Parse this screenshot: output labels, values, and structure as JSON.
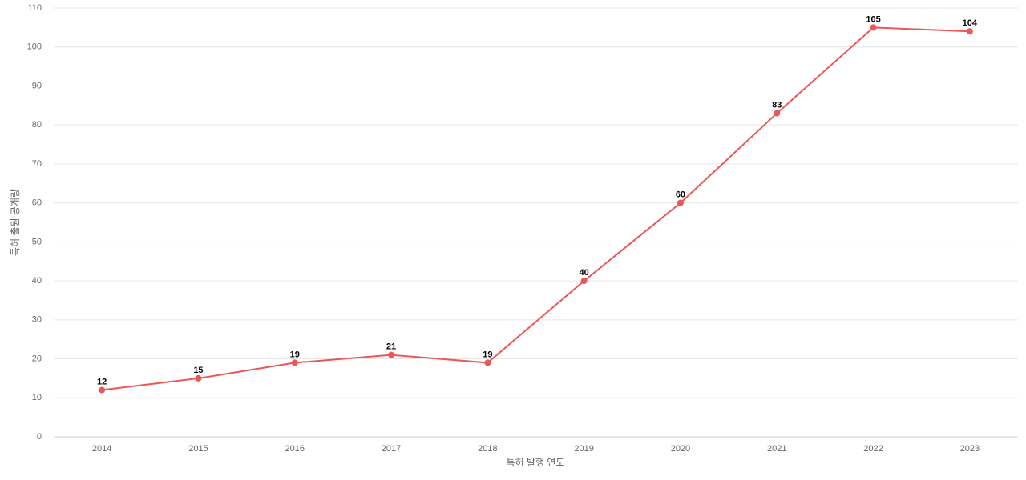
{
  "chart_data": {
    "type": "line",
    "x_label": "특허 발행 연도",
    "y_label": "특허 출원 공개량",
    "categories": [
      "2014",
      "2015",
      "2016",
      "2017",
      "2018",
      "2019",
      "2020",
      "2021",
      "2022",
      "2023"
    ],
    "values": [
      12,
      15,
      19,
      21,
      19,
      40,
      60,
      83,
      105,
      104
    ],
    "color": "#eb5757",
    "ylim": [
      0,
      110
    ],
    "yticks": [
      0,
      10,
      20,
      30,
      40,
      50,
      60,
      70,
      80,
      90,
      100,
      110
    ],
    "grid": true
  }
}
